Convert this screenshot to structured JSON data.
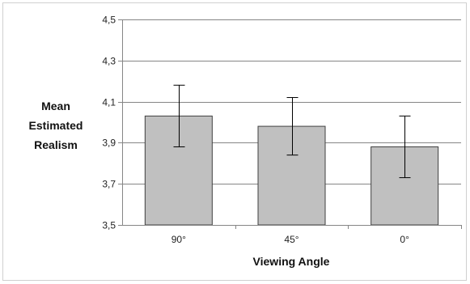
{
  "chart_data": {
    "type": "bar",
    "categories": [
      "90°",
      "45°",
      "0°"
    ],
    "values": [
      4.03,
      3.98,
      3.88
    ],
    "error_upper": [
      4.18,
      4.12,
      4.03
    ],
    "error_lower": [
      3.88,
      3.84,
      3.73
    ],
    "ylim": [
      3.5,
      4.5
    ],
    "yticks": [
      3.5,
      3.7,
      3.9,
      4.1,
      4.3,
      4.5
    ],
    "ytick_labels": [
      "3,5",
      "3,7",
      "3,9",
      "4,1",
      "4,3",
      "4,5"
    ],
    "xlabel": "Viewing Angle",
    "ylabel_lines": [
      "Mean",
      "Estimated",
      "Realism"
    ],
    "grid": true,
    "legend": false,
    "colors": {
      "bar_fill": "#c0c0c0",
      "bar_stroke": "#404040",
      "grid": "#868686",
      "axis": "#868686",
      "error_bar": "#000000"
    }
  }
}
